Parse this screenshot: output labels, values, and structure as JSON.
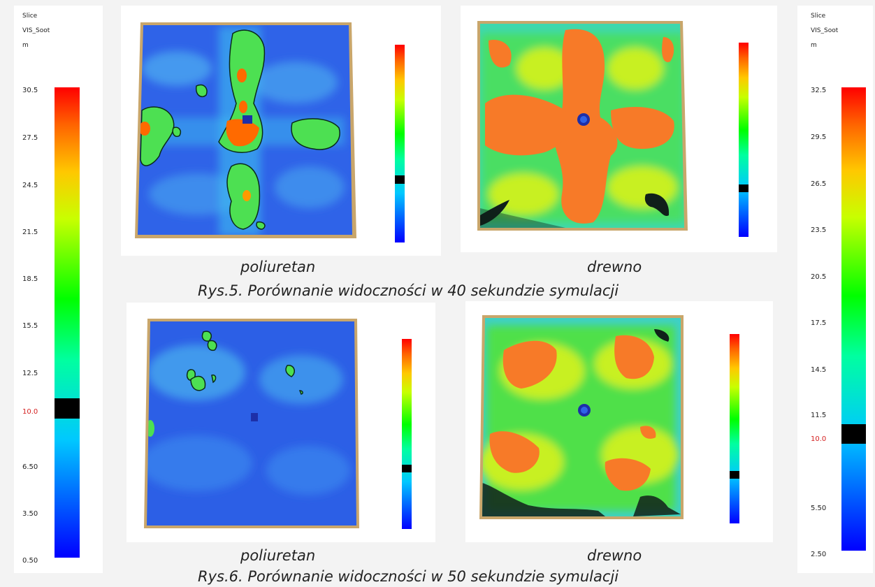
{
  "left_legend": {
    "title": "Slice",
    "quantity": "VIS_Soot",
    "unit": "m",
    "ticks": [
      "30.5",
      "27.5",
      "24.5",
      "21.5",
      "18.5",
      "15.5",
      "12.5",
      "10.0",
      "6.50",
      "3.50",
      "0.50"
    ],
    "highlight": "10.0"
  },
  "right_legend": {
    "title": "Slice",
    "quantity": "VIS_Soot",
    "unit": "m",
    "ticks": [
      "32.5",
      "29.5",
      "26.5",
      "23.5",
      "20.5",
      "17.5",
      "14.5",
      "11.5",
      "10.0",
      "5.50",
      "2.50"
    ],
    "highlight": "10.0"
  },
  "figure5": {
    "left_label": "poliuretan",
    "right_label": "drewno",
    "caption": "Rys.5. Porównanie widoczności w 40 sekundzie symulacji"
  },
  "figure6": {
    "left_label": "poliuretan",
    "right_label": "drewno",
    "caption": "Rys.6. Porównanie widoczności w 50 sekundzie symulacji"
  }
}
